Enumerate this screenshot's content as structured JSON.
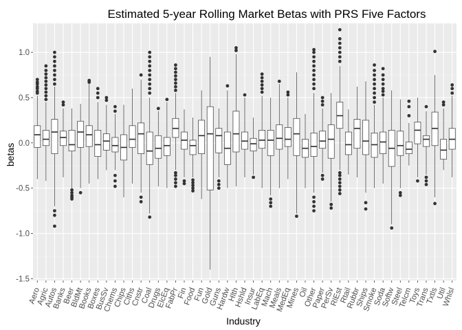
{
  "chart_data": {
    "type": "boxplot",
    "title": "Estimated 5-year Rolling Market Betas with PRS Five Factors",
    "xlabel": "Industry",
    "ylabel": "betas",
    "ylim": [
      -1.52,
      1.32
    ],
    "yticks": [
      -1.5,
      -1.0,
      -0.5,
      0.0,
      0.5,
      1.0
    ],
    "ytick_labels": [
      "-1.5",
      "-1.0",
      "-0.5",
      "0.0",
      "0.5",
      "1.0"
    ],
    "grid": true,
    "legend": "none",
    "colors": {
      "panel_background": "#ebebeb",
      "grid_major": "#ffffff",
      "grid_minor": "#f4f4f4",
      "box_fill": "#ffffff",
      "box_stroke": "#333333",
      "outlier": "#333333"
    },
    "categories": [
      "Aero",
      "Agric",
      "Autos",
      "Banks",
      "Beer",
      "BldMt",
      "Books",
      "Boxes",
      "BusSv",
      "Chems",
      "Chips",
      "Clths",
      "Cnstr",
      "Coal",
      "Drugs",
      "ElcEq",
      "FabPr",
      "Fin",
      "Food",
      "Fun",
      "Gold",
      "Guns",
      "Hardw",
      "Hlth",
      "Hshld",
      "Insur",
      "LabEq",
      "Mach",
      "Meals",
      "MedEq",
      "Mines",
      "Oil",
      "Other",
      "Paper",
      "PerSv",
      "RlEst",
      "Rtail",
      "Rubbr",
      "Ships",
      "Smoke",
      "Soda",
      "Softw",
      "Steel",
      "Telcm",
      "Toys",
      "Trans",
      "Txtls",
      "Util",
      "Whlsl"
    ],
    "boxes": [
      {
        "name": "Aero",
        "whisker_low": -0.4,
        "q1": -0.05,
        "median": 0.09,
        "q3": 0.19,
        "whisker_high": 0.52,
        "outliers": [
          0.55,
          0.57,
          0.6,
          0.62,
          0.65,
          0.67,
          0.7
        ]
      },
      {
        "name": "Agric",
        "whisker_low": -0.42,
        "q1": -0.03,
        "median": 0.04,
        "q3": 0.14,
        "whisker_high": 0.45,
        "outliers": [
          0.48,
          0.52,
          0.56,
          0.6,
          0.64,
          0.68,
          0.72,
          0.76,
          0.8,
          0.85
        ]
      },
      {
        "name": "Autos",
        "whisker_low": -0.7,
        "q1": -0.12,
        "median": 0.12,
        "q3": 0.26,
        "whisker_high": 0.62,
        "outliers": [
          0.65,
          0.7,
          0.75,
          0.8,
          0.85,
          0.9,
          0.95,
          1.0,
          -0.75,
          -0.8,
          -0.92
        ]
      },
      {
        "name": "Banks",
        "whisker_low": -0.38,
        "q1": -0.03,
        "median": 0.06,
        "q3": 0.13,
        "whisker_high": 0.38,
        "outliers": [
          0.42,
          0.45
        ]
      },
      {
        "name": "Beer",
        "whisker_low": -0.5,
        "q1": -0.09,
        "median": -0.02,
        "q3": 0.14,
        "whisker_high": 0.38,
        "outliers": [
          -0.52,
          -0.55,
          -0.58,
          -0.6,
          -0.62
        ]
      },
      {
        "name": "BldMt",
        "whisker_low": -0.5,
        "q1": -0.05,
        "median": 0.12,
        "q3": 0.24,
        "whisker_high": 0.43,
        "outliers": [
          -0.55
        ]
      },
      {
        "name": "Books",
        "whisker_low": -0.45,
        "q1": -0.04,
        "median": 0.09,
        "q3": 0.19,
        "whisker_high": 0.65,
        "outliers": [
          0.67,
          0.69
        ]
      },
      {
        "name": "Boxes",
        "whisker_low": -0.4,
        "q1": -0.15,
        "median": -0.02,
        "q3": 0.14,
        "whisker_high": 0.45,
        "outliers": [
          0.5,
          0.55,
          0.6
        ]
      },
      {
        "name": "BusSv",
        "whisker_low": -0.3,
        "q1": -0.08,
        "median": 0.02,
        "q3": 0.1,
        "whisker_high": 0.42,
        "outliers": [
          0.47,
          0.5
        ]
      },
      {
        "name": "Chems",
        "whisker_low": -0.3,
        "q1": -0.1,
        "median": -0.03,
        "q3": 0.06,
        "whisker_high": 0.32,
        "outliers": [
          0.35,
          0.4,
          -0.36,
          -0.42,
          -0.48
        ]
      },
      {
        "name": "Chips",
        "whisker_low": -0.6,
        "q1": -0.19,
        "median": -0.05,
        "q3": 0.09,
        "whisker_high": 0.42,
        "outliers": []
      },
      {
        "name": "Clths",
        "whisker_low": -0.45,
        "q1": -0.05,
        "median": 0.04,
        "q3": 0.19,
        "whisker_high": 0.6,
        "outliers": []
      },
      {
        "name": "Cnstr",
        "whisker_low": -0.55,
        "q1": -0.12,
        "median": 0.1,
        "q3": 0.22,
        "whisker_high": 0.7,
        "outliers": [
          0.75,
          -0.6,
          -0.65
        ]
      },
      {
        "name": "Coal",
        "whisker_low": -0.78,
        "q1": -0.24,
        "median": -0.09,
        "q3": 0.12,
        "whisker_high": 0.5,
        "outliers": [
          -0.82,
          0.55,
          0.6,
          0.65,
          0.7,
          0.75,
          0.8,
          0.85,
          0.9,
          0.95,
          1.0
        ]
      },
      {
        "name": "Drugs",
        "whisker_low": -0.48,
        "q1": -0.17,
        "median": -0.06,
        "q3": 0.08,
        "whisker_high": 0.35,
        "outliers": [
          0.38
        ]
      },
      {
        "name": "ElcEq",
        "whisker_low": -0.5,
        "q1": -0.14,
        "median": -0.03,
        "q3": 0.06,
        "whisker_high": 0.45,
        "outliers": [
          0.48
        ]
      },
      {
        "name": "FabPr",
        "whisker_low": -0.3,
        "q1": 0.06,
        "median": 0.16,
        "q3": 0.27,
        "whisker_high": 0.55,
        "outliers": [
          0.58,
          0.62,
          0.66,
          0.7,
          0.74,
          0.78,
          0.82,
          0.86,
          -0.33,
          -0.36,
          -0.4,
          -0.44,
          -0.48
        ]
      },
      {
        "name": "Fin",
        "whisker_low": -0.38,
        "q1": -0.07,
        "median": 0.03,
        "q3": 0.12,
        "whisker_high": 0.37,
        "outliers": [
          -0.42,
          -0.45
        ]
      },
      {
        "name": "Food",
        "whisker_low": -0.38,
        "q1": -0.13,
        "median": -0.03,
        "q3": 0.03,
        "whisker_high": 0.28,
        "outliers": [
          -0.41,
          -0.44,
          -0.47,
          -0.5,
          -0.53
        ]
      },
      {
        "name": "Fun",
        "whisker_low": -0.62,
        "q1": -0.12,
        "median": 0.08,
        "q3": 0.25,
        "whisker_high": 0.58,
        "outliers": []
      },
      {
        "name": "Gold",
        "whisker_low": -1.4,
        "q1": -0.52,
        "median": 0.1,
        "q3": 0.4,
        "whisker_high": 0.95,
        "outliers": []
      },
      {
        "name": "Guns",
        "whisker_low": -0.38,
        "q1": -0.11,
        "median": 0.08,
        "q3": 0.16,
        "whisker_high": 0.38,
        "outliers": [
          -0.42,
          -0.46,
          -0.5
        ]
      },
      {
        "name": "Hardw",
        "whisker_low": -0.5,
        "q1": -0.24,
        "median": -0.06,
        "q3": 0.12,
        "whisker_high": 0.58,
        "outliers": [
          0.63
        ]
      },
      {
        "name": "Hlth",
        "whisker_low": -0.48,
        "q1": -0.1,
        "median": 0.1,
        "q3": 0.35,
        "whisker_high": 0.98,
        "outliers": [
          1.02,
          1.05
        ]
      },
      {
        "name": "Hshld",
        "whisker_low": -0.38,
        "q1": -0.07,
        "median": 0.02,
        "q3": 0.12,
        "whisker_high": 0.5,
        "outliers": [
          0.53
        ]
      },
      {
        "name": "Insur",
        "whisker_low": -0.35,
        "q1": -0.09,
        "median": -0.01,
        "q3": 0.05,
        "whisker_high": 0.28,
        "outliers": [
          -0.38
        ]
      },
      {
        "name": "LabEq",
        "whisker_low": -0.5,
        "q1": -0.06,
        "median": 0.03,
        "q3": 0.14,
        "whisker_high": 0.52,
        "outliers": [
          0.56,
          0.6,
          0.64,
          0.68,
          0.72,
          0.76
        ]
      },
      {
        "name": "Mach",
        "whisker_low": -0.58,
        "q1": -0.14,
        "median": 0.03,
        "q3": 0.14,
        "whisker_high": 0.5,
        "outliers": [
          -0.62,
          -0.66,
          -0.7
        ]
      },
      {
        "name": "Meals",
        "whisker_low": -0.5,
        "q1": -0.07,
        "median": 0.05,
        "q3": 0.2,
        "whisker_high": 0.65,
        "outliers": [
          0.68
        ]
      },
      {
        "name": "MedEq",
        "whisker_low": -0.4,
        "q1": -0.04,
        "median": 0.04,
        "q3": 0.17,
        "whisker_high": 0.5,
        "outliers": [
          0.53,
          0.56
        ]
      },
      {
        "name": "Mines",
        "whisker_low": -0.78,
        "q1": -0.14,
        "median": 0.1,
        "q3": 0.27,
        "whisker_high": 0.78,
        "outliers": [
          -0.81
        ]
      },
      {
        "name": "Oil",
        "whisker_low": -0.5,
        "q1": -0.16,
        "median": -0.06,
        "q3": 0.04,
        "whisker_high": 0.32,
        "outliers": []
      },
      {
        "name": "Other",
        "whisker_low": -0.55,
        "q1": -0.15,
        "median": -0.04,
        "q3": 0.11,
        "whisker_high": 0.55,
        "outliers": [
          0.6,
          0.65,
          0.7,
          0.75,
          0.8,
          0.85,
          0.9,
          0.95,
          1.0,
          1.03,
          -0.6,
          -0.65,
          -0.7,
          -0.75
        ]
      },
      {
        "name": "Paper",
        "whisker_low": -0.33,
        "q1": -0.06,
        "median": 0.02,
        "q3": 0.13,
        "whisker_high": 0.38,
        "outliers": [
          0.42,
          0.46,
          0.5,
          -0.36,
          -0.4
        ]
      },
      {
        "name": "PerSv",
        "whisker_low": -0.65,
        "q1": -0.17,
        "median": 0.04,
        "q3": 0.2,
        "whisker_high": 0.55,
        "outliers": [
          -0.68,
          -0.72
        ]
      },
      {
        "name": "RlEst",
        "whisker_low": -0.3,
        "q1": 0.16,
        "median": 0.3,
        "q3": 0.45,
        "whisker_high": 0.85,
        "outliers": [
          0.9,
          0.95,
          1.0,
          1.05,
          1.1,
          1.15,
          1.25,
          -0.33,
          -0.36,
          -0.4,
          -0.44,
          -0.48,
          -0.52,
          -0.56
        ]
      },
      {
        "name": "Rtail",
        "whisker_low": -0.35,
        "q1": -0.13,
        "median": -0.02,
        "q3": 0.12,
        "whisker_high": 0.37,
        "outliers": []
      },
      {
        "name": "Rubbr",
        "whisker_low": -0.38,
        "q1": -0.06,
        "median": 0.16,
        "q3": 0.26,
        "whisker_high": 0.62,
        "outliers": []
      },
      {
        "name": "Ships",
        "whisker_low": -0.55,
        "q1": -0.13,
        "median": 0.02,
        "q3": 0.25,
        "whisker_high": 0.68,
        "outliers": [
          -0.66,
          -0.73
        ]
      },
      {
        "name": "Smoke",
        "whisker_low": -0.5,
        "q1": -0.16,
        "median": -0.02,
        "q3": 0.11,
        "whisker_high": 0.42,
        "outliers": [
          0.45,
          0.5,
          0.55,
          0.6,
          0.65,
          0.7,
          0.75,
          0.8,
          0.86
        ]
      },
      {
        "name": "Soda",
        "whisker_low": -0.45,
        "q1": -0.12,
        "median": 0.01,
        "q3": 0.12,
        "whisker_high": 0.5,
        "outliers": [
          0.53,
          0.57,
          0.6,
          0.65,
          0.7,
          0.75,
          0.82
        ]
      },
      {
        "name": "Softw",
        "whisker_low": -0.9,
        "q1": -0.26,
        "median": -0.06,
        "q3": 0.14,
        "whisker_high": 0.58,
        "outliers": [
          -0.94
        ]
      },
      {
        "name": "Steel",
        "whisker_low": -0.5,
        "q1": -0.14,
        "median": -0.03,
        "q3": 0.13,
        "whisker_high": 0.48,
        "outliers": [
          -0.55,
          -0.58
        ]
      },
      {
        "name": "Telcm",
        "whisker_low": -0.25,
        "q1": -0.12,
        "median": -0.07,
        "q3": 0.01,
        "whisker_high": 0.22,
        "outliers": [
          0.3,
          0.4,
          0.46
        ]
      },
      {
        "name": "Toys",
        "whisker_low": -0.38,
        "q1": -0.01,
        "median": 0.14,
        "q3": 0.23,
        "whisker_high": 0.5,
        "outliers": [
          -0.42
        ]
      },
      {
        "name": "Trans",
        "whisker_low": -0.35,
        "q1": -0.04,
        "median": 0.04,
        "q3": 0.08,
        "whisker_high": 0.35,
        "outliers": [
          -0.38,
          -0.42,
          -0.46,
          0.4
        ]
      },
      {
        "name": "Txtls",
        "whisker_low": -0.6,
        "q1": -0.03,
        "median": 0.16,
        "q3": 0.34,
        "whisker_high": 0.75,
        "outliers": [
          -0.67,
          1.01
        ]
      },
      {
        "name": "Util",
        "whisker_low": -0.3,
        "q1": -0.18,
        "median": -0.08,
        "q3": 0.04,
        "whisker_high": 0.38,
        "outliers": [
          0.42,
          0.45
        ]
      },
      {
        "name": "Whlsl",
        "whisker_low": -0.38,
        "q1": -0.07,
        "median": 0.04,
        "q3": 0.16,
        "whisker_high": 0.52,
        "outliers": [
          0.55,
          0.6,
          0.64
        ]
      }
    ]
  }
}
